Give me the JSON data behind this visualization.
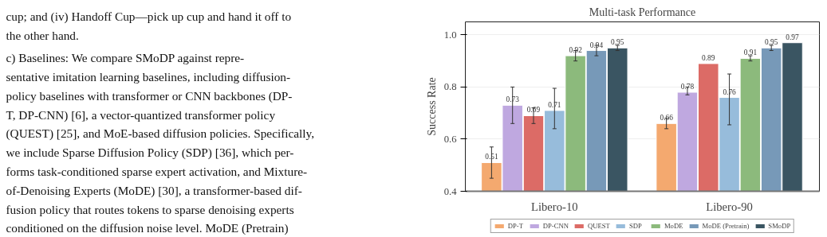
{
  "chart_data": {
    "type": "bar",
    "title": "Multi-task Performance",
    "ylabel": "Success Rate",
    "categories": [
      "Libero-10",
      "Libero-90"
    ],
    "series": [
      {
        "name": "DP-T",
        "color": "#f4a96f",
        "values": [
          0.51,
          0.66
        ],
        "errors": [
          0.06,
          0.02
        ]
      },
      {
        "name": "DP-CNN",
        "color": "#bfa8e0",
        "values": [
          0.73,
          0.78
        ],
        "errors": [
          0.07,
          [
            0.77,
            0.8
          ]
        ]
      },
      {
        "name": "QUEST",
        "color": "#dc6b66",
        "values": [
          0.69,
          0.89
        ],
        "errors": [
          0.03,
          null
        ]
      },
      {
        "name": "SDP",
        "color": "#97bcdb",
        "values": [
          0.71,
          0.76
        ],
        "errors": [
          [
            0.64,
            0.795
          ],
          [
            0.655,
            0.85
          ]
        ]
      },
      {
        "name": "MoDE",
        "color": "#8cba7c",
        "values": [
          0.92,
          0.91
        ],
        "errors": [
          0.02,
          0.01
        ]
      },
      {
        "name": "MoDE (Pretrain)",
        "color": "#7799b8",
        "values": [
          0.94,
          0.95
        ],
        "errors": [
          0.02,
          0.01
        ]
      },
      {
        "name": "SMoDP",
        "color": "#3a5562",
        "values": [
          0.95,
          0.97
        ],
        "errors": [
          0.01,
          null
        ]
      }
    ],
    "ylim": [
      0.4,
      1.05
    ],
    "yticks": [
      0.4,
      0.6,
      0.8,
      {
        "value": 1.0,
        "label": "1.0"
      }
    ],
    "grid": "y",
    "legend": "bottom",
    "data_labels": true,
    "annotations": [
      "cup; and (iv) Handoff Cup—pick up cup and hand it off to",
      "the other hand.",
      "c) Baselines:  We compare SMoDP against repre-",
      "sentative imitation learning baselines, including diffusion-",
      "policy baselines with transformer or CNN backbones (DP-",
      "T, DP-CNN) [6], a vector-quantized transformer policy",
      "(QUEST) [25], and MoE-based diffusion policies. Specifically,",
      "we include Sparse Diffusion Policy (SDP) [36], which per-",
      "forms task-conditioned sparse expert activation, and Mixture-",
      "of-Denoising Experts (MoDE) [30], a transformer-based dif-",
      "fusion policy that routes tokens to sparse denoising experts",
      "conditioned on the diffusion noise level. MoDE (Pretrain)"
    ]
  }
}
